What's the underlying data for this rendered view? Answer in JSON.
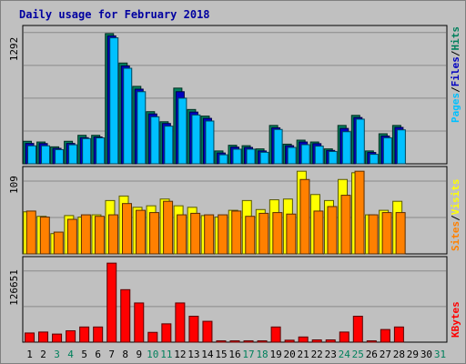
{
  "title": "Daily usage for February 2018",
  "colors": {
    "background": "#c0c0c0",
    "plot": "#c0c0c0",
    "title": "#0000a0",
    "hits": "#00805c",
    "files": "#0000c0",
    "pages": "#00c0ff",
    "visits": "#ffff00",
    "sites": "#ff8000",
    "kbytes": "#ff0000",
    "weekend": "#00805c",
    "weekday": "#000000"
  },
  "chart_data": [
    {
      "type": "bar",
      "panel": "hits-files-pages",
      "ymax_label": "1292",
      "ymax": 1292,
      "categories": [
        "1",
        "2",
        "3",
        "4",
        "5",
        "6",
        "7",
        "8",
        "9",
        "10",
        "11",
        "12",
        "13",
        "14",
        "15",
        "16",
        "17",
        "18",
        "19",
        "20",
        "21",
        "22",
        "23",
        "24",
        "25",
        "26",
        "27",
        "28",
        "29",
        "30",
        "31"
      ],
      "legend": [
        "Pages",
        "/",
        "Files",
        "/",
        "Hits"
      ],
      "series": [
        {
          "name": "Hits",
          "values": [
            219,
            212,
            165,
            219,
            277,
            277,
            1266,
            980,
            753,
            507,
            409,
            736,
            528,
            464,
            125,
            180,
            176,
            145,
            373,
            191,
            230,
            212,
            145,
            373,
            471,
            125,
            292,
            373,
            0,
            0,
            0
          ]
        },
        {
          "name": "Files",
          "values": [
            198,
            197,
            150,
            198,
            254,
            261,
            1244,
            952,
            726,
            485,
            392,
            701,
            503,
            442,
            105,
            162,
            159,
            125,
            350,
            176,
            212,
            196,
            130,
            344,
            450,
            110,
            270,
            354,
            0,
            0,
            0
          ]
        },
        {
          "name": "Pages",
          "values": [
            175,
            175,
            138,
            185,
            245,
            252,
            1225,
            929,
            701,
            457,
            366,
            638,
            475,
            416,
            88,
            142,
            142,
            112,
            334,
            159,
            186,
            172,
            120,
            312,
            434,
            92,
            253,
            330,
            0,
            0,
            0
          ]
        }
      ]
    },
    {
      "type": "bar",
      "panel": "visits-sites",
      "ymax_label": "109",
      "ymax": 109,
      "categories": [
        "1",
        "2",
        "3",
        "4",
        "5",
        "6",
        "7",
        "8",
        "9",
        "10",
        "11",
        "12",
        "13",
        "14",
        "15",
        "16",
        "17",
        "18",
        "19",
        "20",
        "21",
        "22",
        "23",
        "24",
        "25",
        "26",
        "27",
        "28",
        "29",
        "30",
        "31"
      ],
      "legend": [
        "Sites",
        "/",
        "Visits"
      ],
      "series": [
        {
          "name": "Visits",
          "values": [
            56,
            50,
            27,
            51,
            49,
            52,
            71,
            77,
            62,
            64,
            73,
            64,
            62,
            51,
            49,
            58,
            71,
            59,
            72,
            73,
            110,
            79,
            71,
            99,
            108,
            52,
            58,
            70,
            0,
            0,
            0
          ]
        },
        {
          "name": "Sites",
          "values": [
            57,
            49,
            29,
            46,
            52,
            50,
            52,
            67,
            58,
            55,
            70,
            52,
            54,
            52,
            52,
            57,
            50,
            54,
            55,
            53,
            99,
            57,
            63,
            78,
            110,
            52,
            55,
            55,
            0,
            0,
            0
          ]
        }
      ]
    },
    {
      "type": "bar",
      "panel": "kbytes",
      "ymax_label": "126651",
      "ymax": 126651,
      "categories": [
        "1",
        "2",
        "3",
        "4",
        "5",
        "6",
        "7",
        "8",
        "9",
        "10",
        "11",
        "12",
        "13",
        "14",
        "15",
        "16",
        "17",
        "18",
        "19",
        "20",
        "21",
        "22",
        "23",
        "24",
        "25",
        "26",
        "27",
        "28",
        "29",
        "30",
        "31"
      ],
      "legend": [
        "KBytes"
      ],
      "series": [
        {
          "name": "KBytes",
          "values": [
            14500,
            16000,
            12800,
            18000,
            24000,
            24000,
            125000,
            83000,
            62000,
            15500,
            29000,
            62000,
            41000,
            33000,
            2100,
            2100,
            2100,
            2100,
            24000,
            3100,
            8200,
            3600,
            3600,
            16000,
            41000,
            2100,
            20000,
            24000,
            0,
            0,
            0
          ]
        }
      ]
    }
  ],
  "x_day_colors": [
    "weekday",
    "weekday",
    "weekend",
    "weekend",
    "weekday",
    "weekday",
    "weekday",
    "weekday",
    "weekday",
    "weekend",
    "weekend",
    "weekday",
    "weekday",
    "weekday",
    "weekday",
    "weekday",
    "weekend",
    "weekend",
    "weekday",
    "weekday",
    "weekday",
    "weekday",
    "weekday",
    "weekend",
    "weekend",
    "weekday",
    "weekday",
    "weekday",
    "weekday",
    "weekday",
    "weekend"
  ]
}
